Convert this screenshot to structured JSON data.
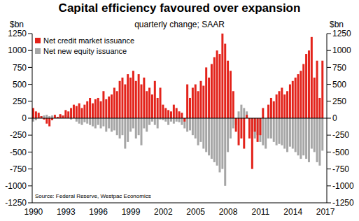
{
  "chart_data": {
    "type": "bar",
    "title": "Capital efficiency favoured over expansion",
    "subtitle": "quarterly change; SAAR",
    "y_label": "$bn",
    "y2_label": "$bn",
    "source": "Source: Federal Reserve, Westpac Economics",
    "categories": [
      "1990",
      null,
      null,
      null,
      null,
      null,
      null,
      null,
      null,
      null,
      null,
      null,
      "1993",
      null,
      null,
      null,
      null,
      null,
      null,
      null,
      null,
      null,
      null,
      null,
      "1996",
      null,
      null,
      null,
      null,
      null,
      null,
      null,
      null,
      null,
      null,
      null,
      "1999",
      null,
      null,
      null,
      null,
      null,
      null,
      null,
      null,
      null,
      null,
      null,
      "2002",
      null,
      null,
      null,
      null,
      null,
      null,
      null,
      null,
      null,
      null,
      null,
      "2005",
      null,
      null,
      null,
      null,
      null,
      null,
      null,
      null,
      null,
      null,
      null,
      "2008",
      null,
      null,
      null,
      null,
      null,
      null,
      null,
      null,
      null,
      null,
      null,
      "2011",
      null,
      null,
      null,
      null,
      null,
      null,
      null,
      null,
      null,
      null,
      null,
      "2014",
      null,
      null,
      null,
      null,
      null,
      null,
      null,
      null,
      null,
      null,
      null,
      "2017"
    ],
    "series": [
      {
        "name": "Net credit market issuance",
        "color": "#e3231b",
        "values": [
          150,
          100,
          80,
          30,
          -20,
          -80,
          -120,
          -30,
          50,
          20,
          60,
          40,
          120,
          100,
          150,
          200,
          180,
          220,
          150,
          200,
          250,
          300,
          220,
          280,
          300,
          250,
          400,
          280,
          320,
          350,
          450,
          400,
          550,
          600,
          500,
          650,
          600,
          700,
          550,
          650,
          500,
          600,
          400,
          450,
          350,
          550,
          300,
          450,
          200,
          150,
          120,
          100,
          200,
          150,
          100,
          80,
          -50,
          500,
          300,
          450,
          500,
          400,
          550,
          480,
          750,
          600,
          800,
          900,
          1000,
          950,
          1250,
          1100,
          850,
          700,
          400,
          -200,
          -400,
          -300,
          -450,
          50,
          -300,
          -750,
          -200,
          -350,
          -250,
          150,
          0,
          200,
          300,
          250,
          350,
          400,
          450,
          350,
          400,
          500,
          550,
          600,
          650,
          700,
          800,
          950,
          1000,
          1200,
          600,
          850,
          300,
          850,
          null
        ]
      },
      {
        "name": "Net new equity issuance",
        "color": "#a6a6a6",
        "values": [
          -50,
          -30,
          20,
          30,
          40,
          50,
          30,
          40,
          30,
          20,
          40,
          20,
          50,
          30,
          -20,
          10,
          -50,
          -80,
          -100,
          -60,
          -80,
          -100,
          -120,
          -150,
          -100,
          -150,
          -120,
          -200,
          -150,
          -200,
          -180,
          -250,
          -300,
          -250,
          -450,
          -350,
          -200,
          -150,
          -300,
          -250,
          -400,
          -150,
          -200,
          -100,
          -50,
          -100,
          -150,
          -20,
          -30,
          -50,
          -100,
          -50,
          -80,
          -50,
          -60,
          -100,
          -150,
          -200,
          -180,
          -250,
          -300,
          -400,
          -350,
          -450,
          -500,
          -550,
          -600,
          -650,
          -700,
          -800,
          -750,
          -1000,
          -500,
          -300,
          -150,
          -100,
          100,
          200,
          150,
          100,
          -50,
          -200,
          -300,
          -250,
          -350,
          -400,
          -450,
          -300,
          -300,
          -350,
          -400,
          -380,
          -400,
          -450,
          -500,
          -420,
          -450,
          -500,
          -550,
          -600,
          -550,
          -600,
          -650,
          -450,
          -500,
          -650,
          -700,
          -480,
          null
        ]
      }
    ],
    "ylim": [
      -1250,
      1250
    ],
    "yticks": [
      -1250,
      -1000,
      -750,
      -500,
      -250,
      0,
      250,
      500,
      750,
      1000,
      1250
    ],
    "y2lim": [
      -1250,
      1250
    ],
    "y2ticks": [
      -1250,
      -1000,
      -750,
      -500,
      -250,
      0,
      250,
      500,
      750,
      1000,
      1250
    ],
    "grid": false,
    "legend": "top-left"
  }
}
